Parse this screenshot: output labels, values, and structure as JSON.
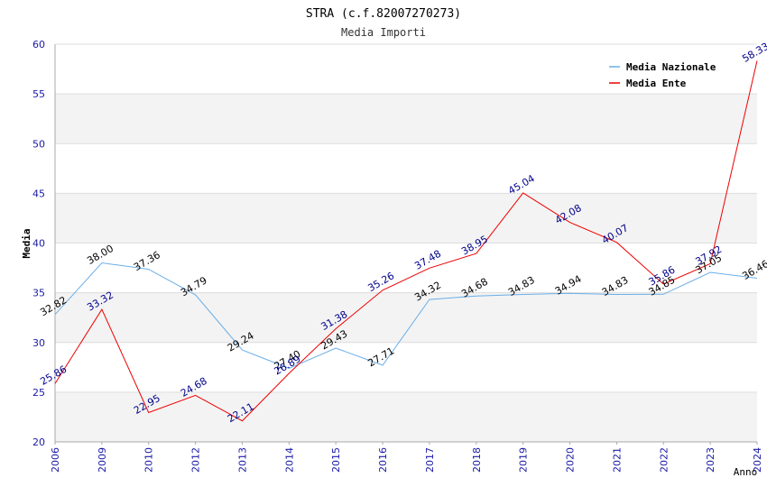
{
  "chart_data": {
    "type": "line",
    "title": "STRA (c.f.82007270273)",
    "subtitle": "Media Importi",
    "xlabel": "Anno",
    "ylabel": "Media",
    "ylim": [
      20,
      60
    ],
    "yticks": [
      20,
      25,
      30,
      35,
      40,
      45,
      50,
      55,
      60
    ],
    "grid": true,
    "legend_position": "top-right",
    "categories": [
      "2006",
      "2009",
      "2010",
      "2012",
      "2013",
      "2014",
      "2015",
      "2016",
      "2017",
      "2018",
      "2019",
      "2020",
      "2021",
      "2022",
      "2023",
      "2024"
    ],
    "series": [
      {
        "name": "Media Nazionale",
        "color": "#6aaee8",
        "label_color": "#000000",
        "values": [
          32.82,
          38.0,
          37.36,
          34.79,
          29.24,
          27.4,
          29.43,
          27.71,
          34.32,
          34.68,
          34.83,
          34.94,
          34.83,
          34.85,
          37.05,
          36.46
        ],
        "labels": [
          "32.82",
          "38.00",
          "37.36",
          "34.79",
          "29.24",
          "27.40",
          "29.43",
          "27.71",
          "34.32",
          "34.68",
          "34.83",
          "34.94",
          "34.83",
          "34.85",
          "37.05",
          "36.46"
        ]
      },
      {
        "name": "Media Ente",
        "color": "#ee0000",
        "label_color": "#00008b",
        "values": [
          25.86,
          33.32,
          22.95,
          24.68,
          22.11,
          26.89,
          31.38,
          35.26,
          37.48,
          38.95,
          45.04,
          42.08,
          40.07,
          35.86,
          37.92,
          58.33
        ],
        "labels": [
          "25.86",
          "33.32",
          "22.95",
          "24.68",
          "22.11",
          "26.89",
          "31.38",
          "35.26",
          "37.48",
          "38.95",
          "45.04",
          "42.08",
          "40.07",
          "35.86",
          "37.92",
          "58.33"
        ]
      }
    ]
  }
}
